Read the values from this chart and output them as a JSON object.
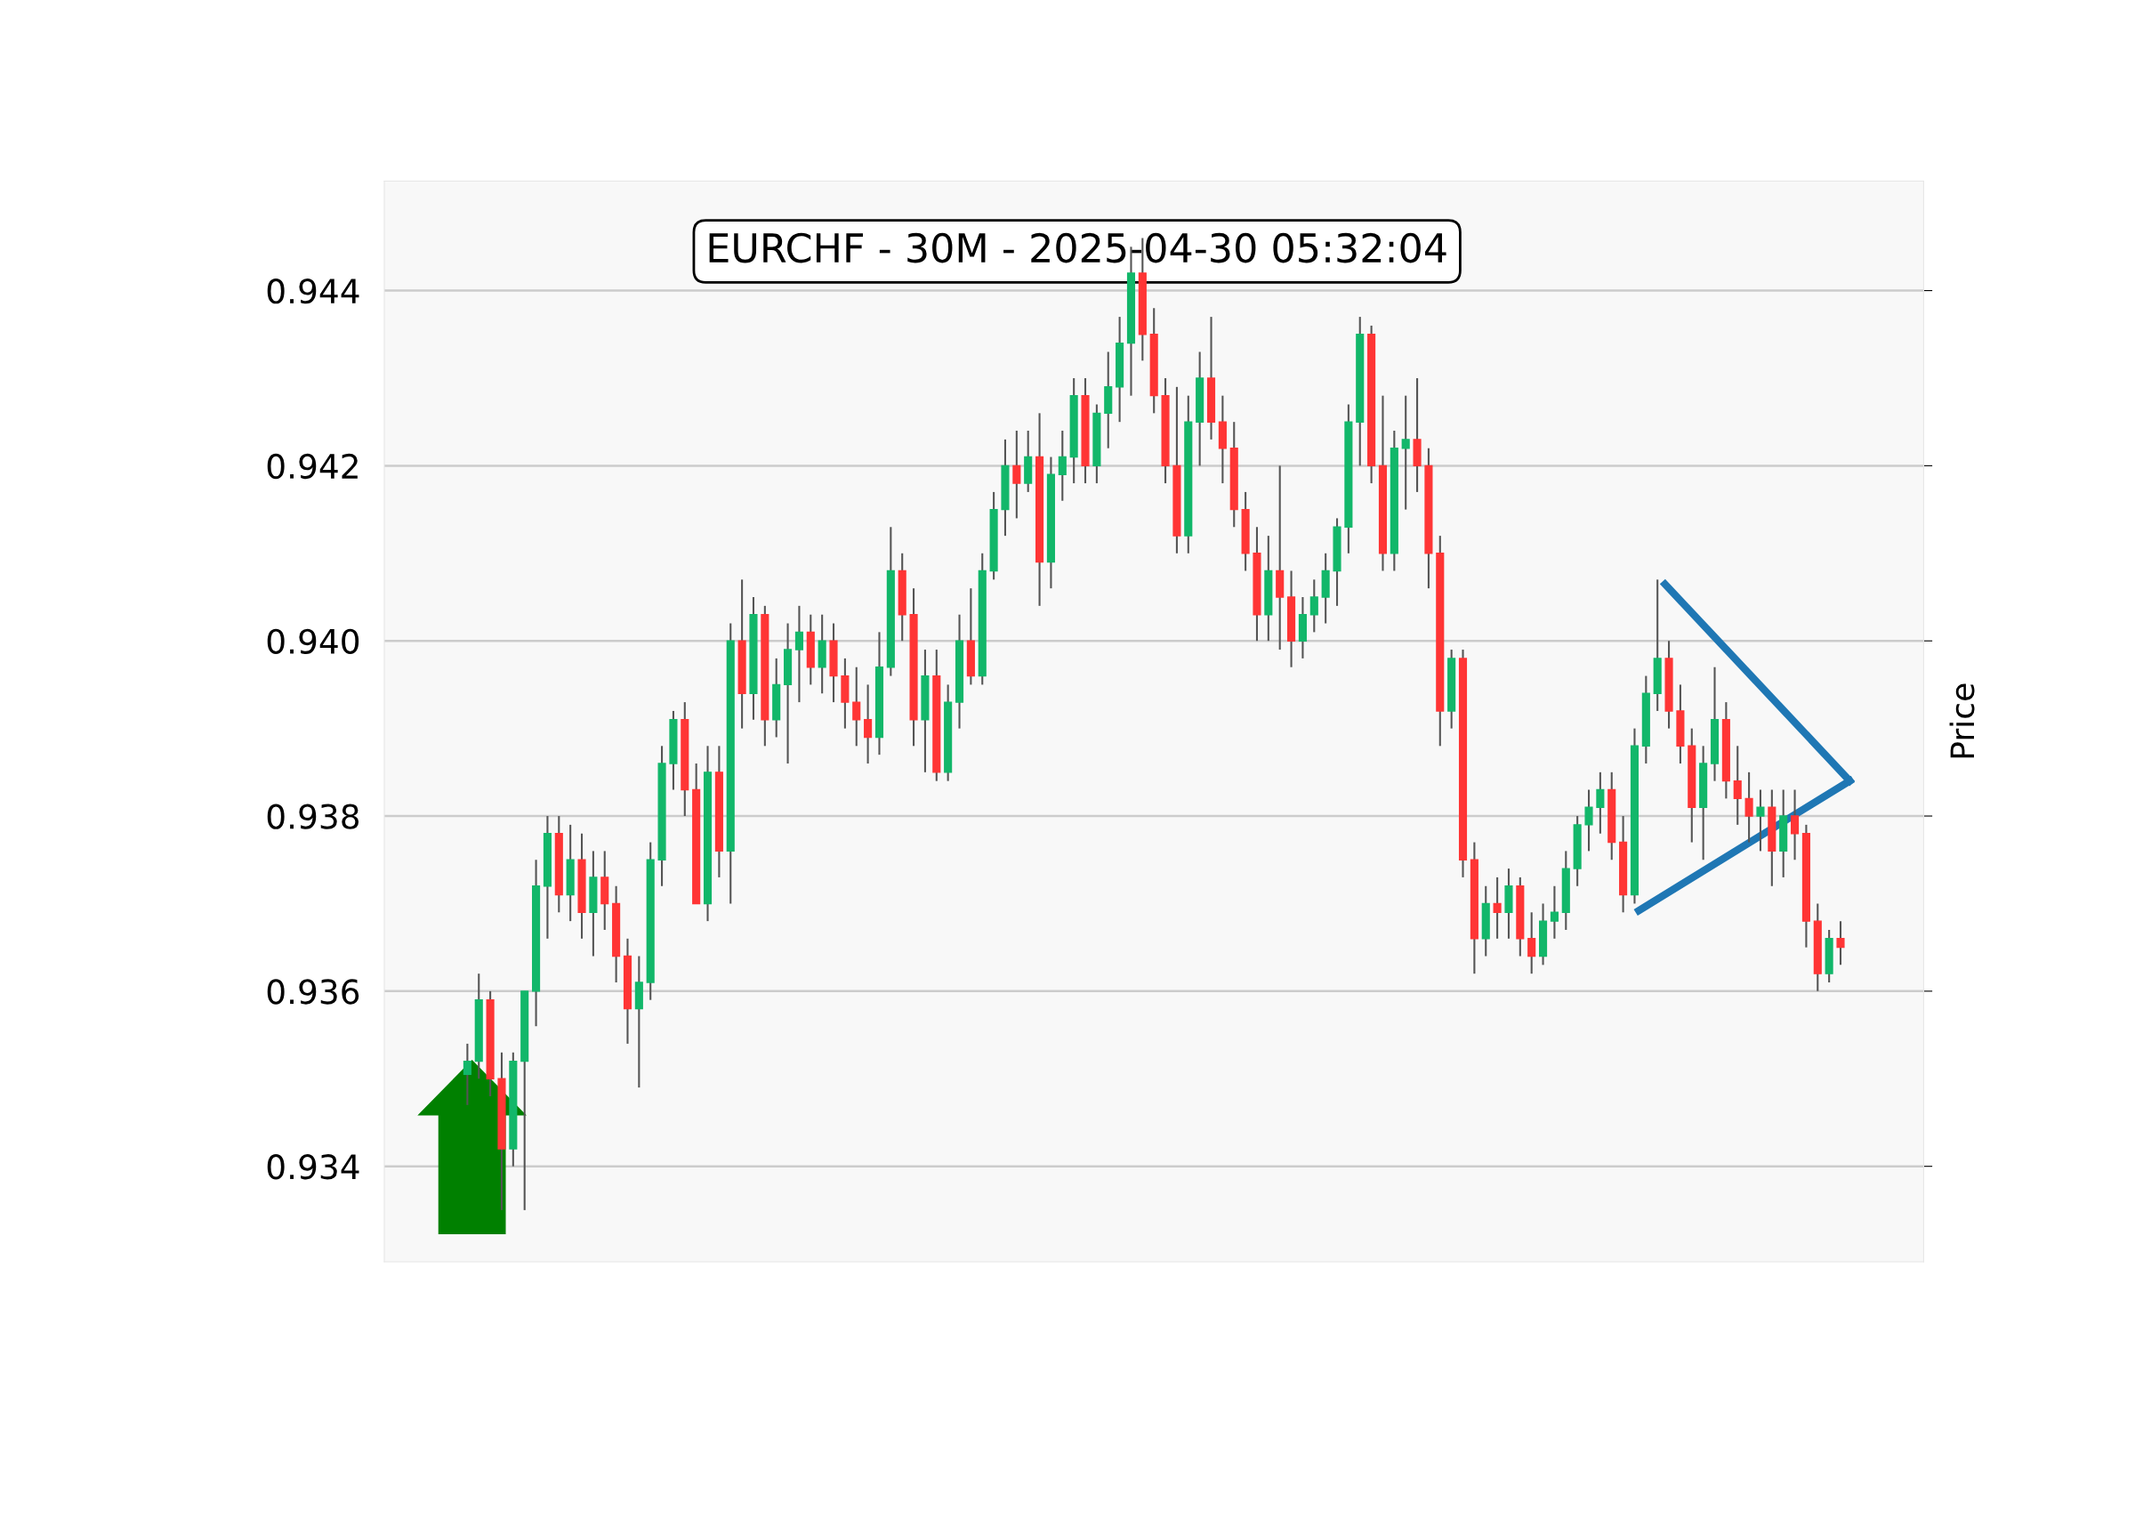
{
  "chart_data": {
    "type": "candlestick",
    "title": "EURCHF - 30M - 2025-04-30 05:32:04",
    "ylabel": "Price",
    "categories": [
      null,
      null,
      null,
      null,
      null,
      null,
      null,
      null,
      null,
      null,
      null,
      null,
      null,
      null,
      null,
      null,
      null,
      null,
      null,
      null,
      null,
      null,
      null,
      null,
      null,
      null,
      null,
      null,
      null,
      null,
      null,
      null,
      null,
      null,
      null,
      null,
      null,
      null,
      null,
      null,
      null,
      null,
      null,
      null,
      null,
      null,
      null,
      null,
      null,
      null,
      null,
      null,
      null,
      null,
      null,
      null,
      null,
      null,
      null,
      null,
      null,
      null,
      null,
      null,
      null,
      null,
      null,
      null,
      null,
      null,
      null,
      null,
      null,
      null,
      null,
      null,
      null,
      null,
      null,
      null,
      null,
      null,
      null,
      null,
      null,
      null,
      null,
      null,
      null,
      null,
      null,
      null,
      null,
      null,
      null,
      null,
      null,
      null,
      null,
      null,
      null,
      null,
      null,
      null,
      null,
      null,
      null,
      null,
      null,
      null,
      null,
      null,
      null,
      null,
      null,
      null,
      null,
      null,
      null,
      null,
      null
    ],
    "ohlc": [
      [
        0.93505,
        0.9354,
        0.9347,
        0.9352
      ],
      [
        0.9352,
        0.9362,
        0.935,
        0.9359
      ],
      [
        0.9359,
        0.936,
        0.9348,
        0.935
      ],
      [
        0.935,
        0.9353,
        0.9335,
        0.9342
      ],
      [
        0.9342,
        0.9353,
        0.934,
        0.9352
      ],
      [
        0.9352,
        0.936,
        0.9335,
        0.936
      ],
      [
        0.936,
        0.9375,
        0.9356,
        0.9372
      ],
      [
        0.9372,
        0.938,
        0.9366,
        0.9378
      ],
      [
        0.9378,
        0.938,
        0.9369,
        0.9371
      ],
      [
        0.9371,
        0.9379,
        0.9368,
        0.9375
      ],
      [
        0.9375,
        0.9378,
        0.9366,
        0.9369
      ],
      [
        0.9369,
        0.9376,
        0.9364,
        0.9373
      ],
      [
        0.9373,
        0.9376,
        0.9367,
        0.937
      ],
      [
        0.937,
        0.9372,
        0.9361,
        0.9364
      ],
      [
        0.9364,
        0.9366,
        0.9354,
        0.9358
      ],
      [
        0.9358,
        0.9364,
        0.9349,
        0.9361
      ],
      [
        0.9361,
        0.9377,
        0.9359,
        0.9375
      ],
      [
        0.9375,
        0.9388,
        0.9372,
        0.9386
      ],
      [
        0.9386,
        0.9392,
        0.9383,
        0.9391
      ],
      [
        0.9391,
        0.9393,
        0.938,
        0.9383
      ],
      [
        0.9383,
        0.9386,
        0.937,
        0.937
      ],
      [
        0.937,
        0.9388,
        0.9368,
        0.9385
      ],
      [
        0.9385,
        0.9388,
        0.9373,
        0.9376
      ],
      [
        0.9376,
        0.9402,
        0.937,
        0.94
      ],
      [
        0.94,
        0.9407,
        0.939,
        0.9394
      ],
      [
        0.9394,
        0.9405,
        0.9391,
        0.9403
      ],
      [
        0.9403,
        0.9404,
        0.9388,
        0.9391
      ],
      [
        0.9391,
        0.9398,
        0.9389,
        0.9395
      ],
      [
        0.9395,
        0.9402,
        0.9386,
        0.9399
      ],
      [
        0.9399,
        0.9404,
        0.9393,
        0.9401
      ],
      [
        0.9401,
        0.9403,
        0.9395,
        0.9397
      ],
      [
        0.9397,
        0.9403,
        0.9394,
        0.94
      ],
      [
        0.94,
        0.9402,
        0.9393,
        0.9396
      ],
      [
        0.9396,
        0.9398,
        0.939,
        0.9393
      ],
      [
        0.9393,
        0.9397,
        0.9388,
        0.9391
      ],
      [
        0.9391,
        0.9395,
        0.9386,
        0.9389
      ],
      [
        0.9389,
        0.9401,
        0.9387,
        0.9397
      ],
      [
        0.9397,
        0.9413,
        0.9396,
        0.9408
      ],
      [
        0.9408,
        0.941,
        0.94,
        0.9403
      ],
      [
        0.9403,
        0.9406,
        0.9388,
        0.9391
      ],
      [
        0.9391,
        0.9399,
        0.9385,
        0.9396
      ],
      [
        0.9396,
        0.9399,
        0.9384,
        0.9385
      ],
      [
        0.9385,
        0.9395,
        0.9384,
        0.9393
      ],
      [
        0.9393,
        0.9403,
        0.939,
        0.94
      ],
      [
        0.94,
        0.9406,
        0.9395,
        0.9396
      ],
      [
        0.9396,
        0.941,
        0.9395,
        0.9408
      ],
      [
        0.9408,
        0.9417,
        0.9407,
        0.9415
      ],
      [
        0.9415,
        0.9423,
        0.9412,
        0.942
      ],
      [
        0.942,
        0.9424,
        0.9414,
        0.9418
      ],
      [
        0.9418,
        0.9424,
        0.9417,
        0.9421
      ],
      [
        0.9421,
        0.9426,
        0.9404,
        0.9409
      ],
      [
        0.9409,
        0.9421,
        0.9406,
        0.9419
      ],
      [
        0.9419,
        0.9424,
        0.9416,
        0.9421
      ],
      [
        0.9421,
        0.943,
        0.9418,
        0.9428
      ],
      [
        0.9428,
        0.943,
        0.9418,
        0.942
      ],
      [
        0.942,
        0.9427,
        0.9418,
        0.9426
      ],
      [
        0.9426,
        0.9433,
        0.9422,
        0.9429
      ],
      [
        0.9429,
        0.9437,
        0.9425,
        0.9434
      ],
      [
        0.9434,
        0.9445,
        0.9428,
        0.9442
      ],
      [
        0.9442,
        0.9446,
        0.9432,
        0.9435
      ],
      [
        0.9435,
        0.9438,
        0.9426,
        0.9428
      ],
      [
        0.9428,
        0.943,
        0.9418,
        0.942
      ],
      [
        0.942,
        0.9429,
        0.941,
        0.9412
      ],
      [
        0.9412,
        0.9428,
        0.941,
        0.9425
      ],
      [
        0.9425,
        0.9433,
        0.942,
        0.943
      ],
      [
        0.943,
        0.9437,
        0.9423,
        0.9425
      ],
      [
        0.9425,
        0.9428,
        0.9418,
        0.9422
      ],
      [
        0.9422,
        0.9425,
        0.9413,
        0.9415
      ],
      [
        0.9415,
        0.9417,
        0.9408,
        0.941
      ],
      [
        0.941,
        0.9413,
        0.94,
        0.9403
      ],
      [
        0.9403,
        0.9412,
        0.94,
        0.9408
      ],
      [
        0.9408,
        0.942,
        0.9399,
        0.9405
      ],
      [
        0.9405,
        0.9408,
        0.9397,
        0.94
      ],
      [
        0.94,
        0.9405,
        0.9398,
        0.9403
      ],
      [
        0.9403,
        0.9407,
        0.9401,
        0.9405
      ],
      [
        0.9405,
        0.941,
        0.9402,
        0.9408
      ],
      [
        0.9408,
        0.9414,
        0.9404,
        0.9413
      ],
      [
        0.9413,
        0.9427,
        0.941,
        0.9425
      ],
      [
        0.9425,
        0.9437,
        0.942,
        0.9435
      ],
      [
        0.9435,
        0.9436,
        0.9418,
        0.942
      ],
      [
        0.942,
        0.9428,
        0.9408,
        0.941
      ],
      [
        0.941,
        0.9424,
        0.9408,
        0.9422
      ],
      [
        0.9422,
        0.9428,
        0.9415,
        0.9423
      ],
      [
        0.9423,
        0.943,
        0.9417,
        0.942
      ],
      [
        0.942,
        0.9422,
        0.9406,
        0.941
      ],
      [
        0.941,
        0.9412,
        0.9388,
        0.9392
      ],
      [
        0.9392,
        0.9399,
        0.939,
        0.9398
      ],
      [
        0.9398,
        0.9399,
        0.9373,
        0.9375
      ],
      [
        0.9375,
        0.9377,
        0.9362,
        0.9366
      ],
      [
        0.9366,
        0.9372,
        0.9364,
        0.937
      ],
      [
        0.937,
        0.9373,
        0.9366,
        0.9369
      ],
      [
        0.9369,
        0.9374,
        0.9366,
        0.9372
      ],
      [
        0.9372,
        0.9373,
        0.9364,
        0.9366
      ],
      [
        0.9366,
        0.9369,
        0.9362,
        0.9364
      ],
      [
        0.9364,
        0.937,
        0.9363,
        0.9368
      ],
      [
        0.9368,
        0.9372,
        0.9366,
        0.9369
      ],
      [
        0.9369,
        0.9376,
        0.9367,
        0.9374
      ],
      [
        0.9374,
        0.938,
        0.9372,
        0.9379
      ],
      [
        0.9379,
        0.9383,
        0.9376,
        0.9381
      ],
      [
        0.9381,
        0.9385,
        0.9378,
        0.9383
      ],
      [
        0.9383,
        0.9385,
        0.9375,
        0.9377
      ],
      [
        0.9377,
        0.938,
        0.9369,
        0.9371
      ],
      [
        0.9371,
        0.939,
        0.937,
        0.9388
      ],
      [
        0.9388,
        0.9396,
        0.9386,
        0.9394
      ],
      [
        0.9394,
        0.9407,
        0.9392,
        0.9398
      ],
      [
        0.9398,
        0.94,
        0.939,
        0.9392
      ],
      [
        0.9392,
        0.9395,
        0.9386,
        0.9388
      ],
      [
        0.9388,
        0.939,
        0.9377,
        0.9381
      ],
      [
        0.9381,
        0.9388,
        0.9375,
        0.9386
      ],
      [
        0.9386,
        0.9397,
        0.9384,
        0.9391
      ],
      [
        0.9391,
        0.9393,
        0.9382,
        0.9384
      ],
      [
        0.9384,
        0.9388,
        0.9379,
        0.9382
      ],
      [
        0.9382,
        0.9385,
        0.9377,
        0.938
      ],
      [
        0.938,
        0.9383,
        0.9376,
        0.9381
      ],
      [
        0.9381,
        0.9383,
        0.9372,
        0.9376
      ],
      [
        0.9376,
        0.9383,
        0.9373,
        0.938
      ],
      [
        0.938,
        0.9383,
        0.9375,
        0.9378
      ],
      [
        0.9378,
        0.9379,
        0.9365,
        0.9368
      ],
      [
        0.9368,
        0.937,
        0.936,
        0.9362
      ],
      [
        0.9362,
        0.9367,
        0.9361,
        0.9366
      ],
      [
        0.9366,
        0.9368,
        0.9363,
        0.9365
      ]
    ],
    "ylim": [
      0.93291,
      0.94525
    ],
    "yticks": [
      {
        "value": 0.934,
        "label": "0.934"
      },
      {
        "value": 0.936,
        "label": "0.936"
      },
      {
        "value": 0.938,
        "label": "0.938"
      },
      {
        "value": 0.94,
        "label": "0.940"
      },
      {
        "value": 0.942,
        "label": "0.942"
      },
      {
        "value": 0.944,
        "label": "0.944"
      }
    ],
    "grid": "y"
  }
}
